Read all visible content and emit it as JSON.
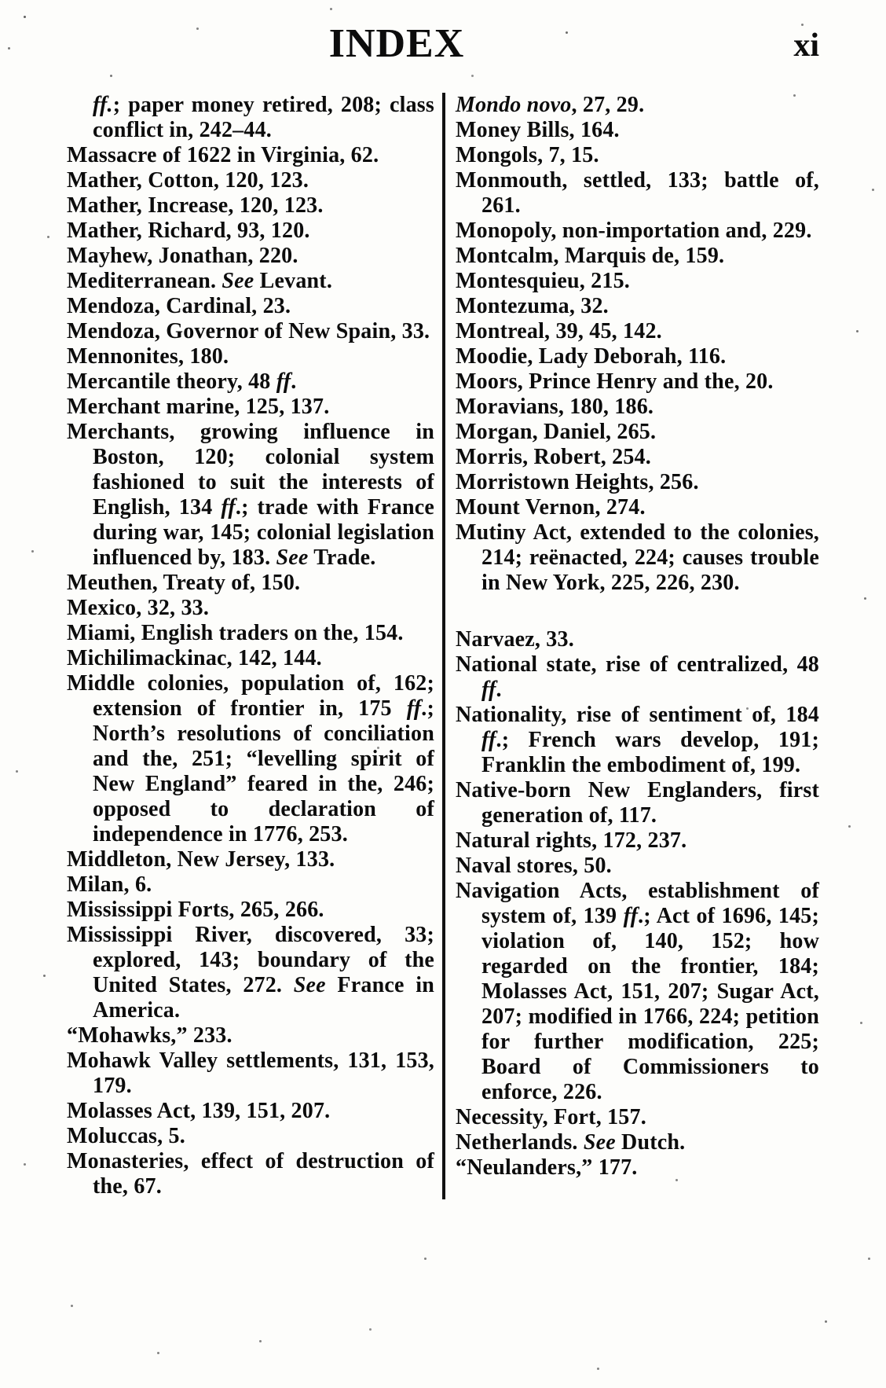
{
  "page": {
    "title": "INDEX",
    "page_number": "xi"
  },
  "colors": {
    "ink": "#0c0c0c",
    "paper": "#fdfdfb"
  },
  "index": {
    "left_column": [
      {
        "continuation": true,
        "segments": [
          {
            "text": "ff.",
            "italic": true
          },
          {
            "text": "; paper money retired, 208; class conflict in, 242–44.",
            "italic": false
          }
        ]
      },
      {
        "segments": [
          {
            "text": "Massacre of 1622 in Virginia, 62.",
            "italic": false
          }
        ]
      },
      {
        "segments": [
          {
            "text": "Mather, Cotton, 120, 123.",
            "italic": false
          }
        ]
      },
      {
        "segments": [
          {
            "text": "Mather, Increase, 120, 123.",
            "italic": false
          }
        ]
      },
      {
        "segments": [
          {
            "text": "Mather, Richard, 93, 120.",
            "italic": false
          }
        ]
      },
      {
        "segments": [
          {
            "text": "Mayhew, Jonathan, 220.",
            "italic": false
          }
        ]
      },
      {
        "segments": [
          {
            "text": "Mediterranean.  ",
            "italic": false
          },
          {
            "text": "See",
            "italic": true
          },
          {
            "text": " Levant.",
            "italic": false
          }
        ]
      },
      {
        "segments": [
          {
            "text": "Mendoza, Cardinal, 23.",
            "italic": false
          }
        ]
      },
      {
        "segments": [
          {
            "text": "Mendoza, Governor of New Spain, 33.",
            "italic": false
          }
        ]
      },
      {
        "segments": [
          {
            "text": "Mennonites, 180.",
            "italic": false
          }
        ]
      },
      {
        "segments": [
          {
            "text": "Mercantile theory, 48 ",
            "italic": false
          },
          {
            "text": "ff",
            "italic": true
          },
          {
            "text": ".",
            "italic": false
          }
        ]
      },
      {
        "segments": [
          {
            "text": "Merchant marine, 125, 137.",
            "italic": false
          }
        ]
      },
      {
        "segments": [
          {
            "text": "Merchants, growing influence in Boston, 120; colonial system fashioned to suit the interests of English, 134 ",
            "italic": false
          },
          {
            "text": "ff",
            "italic": true
          },
          {
            "text": ".; trade with France during war, 145; colonial legislation influenced by, 183.  ",
            "italic": false
          },
          {
            "text": "See",
            "italic": true
          },
          {
            "text": " Trade.",
            "italic": false
          }
        ]
      },
      {
        "segments": [
          {
            "text": "Meuthen, Treaty of, 150.",
            "italic": false
          }
        ]
      },
      {
        "segments": [
          {
            "text": "Mexico, 32, 33.",
            "italic": false
          }
        ]
      },
      {
        "segments": [
          {
            "text": "Miami, English traders on the, 154.",
            "italic": false
          }
        ]
      },
      {
        "segments": [
          {
            "text": "Michilimackinac, 142, 144.",
            "italic": false
          }
        ]
      },
      {
        "segments": [
          {
            "text": "Middle colonies, population of, 162; extension of frontier in, 175 ",
            "italic": false
          },
          {
            "text": "ff",
            "italic": true
          },
          {
            "text": ".; North’s resolutions of conciliation and the, 251; “levelling spirit of New England” feared in the, 246; opposed to declaration of independence in 1776, 253.",
            "italic": false
          }
        ]
      },
      {
        "segments": [
          {
            "text": "Middleton, New Jersey, 133.",
            "italic": false
          }
        ]
      },
      {
        "segments": [
          {
            "text": "Milan, 6.",
            "italic": false
          }
        ]
      },
      {
        "segments": [
          {
            "text": "Mississippi Forts, 265, 266.",
            "italic": false
          }
        ]
      },
      {
        "segments": [
          {
            "text": "Mississippi River, discovered, 33; explored, 143; boundary of the United States, 272.  ",
            "italic": false
          },
          {
            "text": "See",
            "italic": true
          },
          {
            "text": " France in America.",
            "italic": false
          }
        ]
      },
      {
        "segments": [
          {
            "text": "“Mohawks,” 233.",
            "italic": false
          }
        ]
      },
      {
        "segments": [
          {
            "text": "Mohawk Valley settlements, 131, 153, 179.",
            "italic": false
          }
        ]
      },
      {
        "segments": [
          {
            "text": "Molasses Act, 139, 151, 207.",
            "italic": false
          }
        ]
      },
      {
        "segments": [
          {
            "text": "Moluccas, 5.",
            "italic": false
          }
        ]
      },
      {
        "segments": [
          {
            "text": "Monasteries, effect of destruction of the, 67.",
            "italic": false
          }
        ]
      }
    ],
    "right_column": [
      {
        "segments": [
          {
            "text": "Mondo novo",
            "italic": true
          },
          {
            "text": ", 27, 29.",
            "italic": false
          }
        ]
      },
      {
        "segments": [
          {
            "text": "Money Bills, 164.",
            "italic": false
          }
        ]
      },
      {
        "segments": [
          {
            "text": "Mongols, 7, 15.",
            "italic": false
          }
        ]
      },
      {
        "segments": [
          {
            "text": "Monmouth, settled, 133; battle of, 261.",
            "italic": false
          }
        ]
      },
      {
        "segments": [
          {
            "text": "Monopoly, non-importation and, 229.",
            "italic": false
          }
        ]
      },
      {
        "segments": [
          {
            "text": "Montcalm, Marquis de, 159.",
            "italic": false
          }
        ]
      },
      {
        "segments": [
          {
            "text": "Montesquieu, 215.",
            "italic": false
          }
        ]
      },
      {
        "segments": [
          {
            "text": "Montezuma, 32.",
            "italic": false
          }
        ]
      },
      {
        "segments": [
          {
            "text": "Montreal, 39, 45, 142.",
            "italic": false
          }
        ]
      },
      {
        "segments": [
          {
            "text": "Moodie, Lady Deborah, 116.",
            "italic": false
          }
        ]
      },
      {
        "segments": [
          {
            "text": "Moors, Prince Henry and the, 20.",
            "italic": false
          }
        ]
      },
      {
        "segments": [
          {
            "text": "Moravians, 180, 186.",
            "italic": false
          }
        ]
      },
      {
        "segments": [
          {
            "text": "Morgan, Daniel, 265.",
            "italic": false
          }
        ]
      },
      {
        "segments": [
          {
            "text": "Morris, Robert, 254.",
            "italic": false
          }
        ]
      },
      {
        "segments": [
          {
            "text": "Morristown Heights, 256.",
            "italic": false
          }
        ]
      },
      {
        "segments": [
          {
            "text": "Mount Vernon, 274.",
            "italic": false
          }
        ]
      },
      {
        "segments": [
          {
            "text": "Mutiny Act, extended to the colonies, 214; reënacted, 224; causes trouble in New York, 225, 226, 230.",
            "italic": false
          }
        ]
      },
      {
        "spacer": true
      },
      {
        "segments": [
          {
            "text": "Narvaez, 33.",
            "italic": false
          }
        ]
      },
      {
        "segments": [
          {
            "text": "National state, rise of centralized, 48 ",
            "italic": false
          },
          {
            "text": "ff",
            "italic": true
          },
          {
            "text": ".",
            "italic": false
          }
        ]
      },
      {
        "segments": [
          {
            "text": "Nationality, rise of sentiment of, 184 ",
            "italic": false
          },
          {
            "text": "ff",
            "italic": true
          },
          {
            "text": ".; French wars develop, 191; Franklin the embodiment of, 199.",
            "italic": false
          }
        ]
      },
      {
        "segments": [
          {
            "text": "Native-born New Englanders, first generation of, 117.",
            "italic": false
          }
        ]
      },
      {
        "segments": [
          {
            "text": "Natural rights, 172, 237.",
            "italic": false
          }
        ]
      },
      {
        "segments": [
          {
            "text": "Naval stores, 50.",
            "italic": false
          }
        ]
      },
      {
        "segments": [
          {
            "text": "Navigation Acts, establishment of system of, 139 ",
            "italic": false
          },
          {
            "text": "ff",
            "italic": true
          },
          {
            "text": ".; Act of 1696, 145; violation of, 140, 152; how regarded on the frontier, 184; Molasses Act, 151, 207; Sugar Act, 207; modified in 1766, 224; petition for further modification, 225; Board of Commissioners to enforce, 226.",
            "italic": false
          }
        ]
      },
      {
        "segments": [
          {
            "text": "Necessity, Fort, 157.",
            "italic": false
          }
        ]
      },
      {
        "segments": [
          {
            "text": "Netherlands.  ",
            "italic": false
          },
          {
            "text": "See",
            "italic": true
          },
          {
            "text": " Dutch.",
            "italic": false
          }
        ]
      },
      {
        "segments": [
          {
            "text": "“Neulanders,” 177.",
            "italic": false
          }
        ]
      }
    ]
  }
}
